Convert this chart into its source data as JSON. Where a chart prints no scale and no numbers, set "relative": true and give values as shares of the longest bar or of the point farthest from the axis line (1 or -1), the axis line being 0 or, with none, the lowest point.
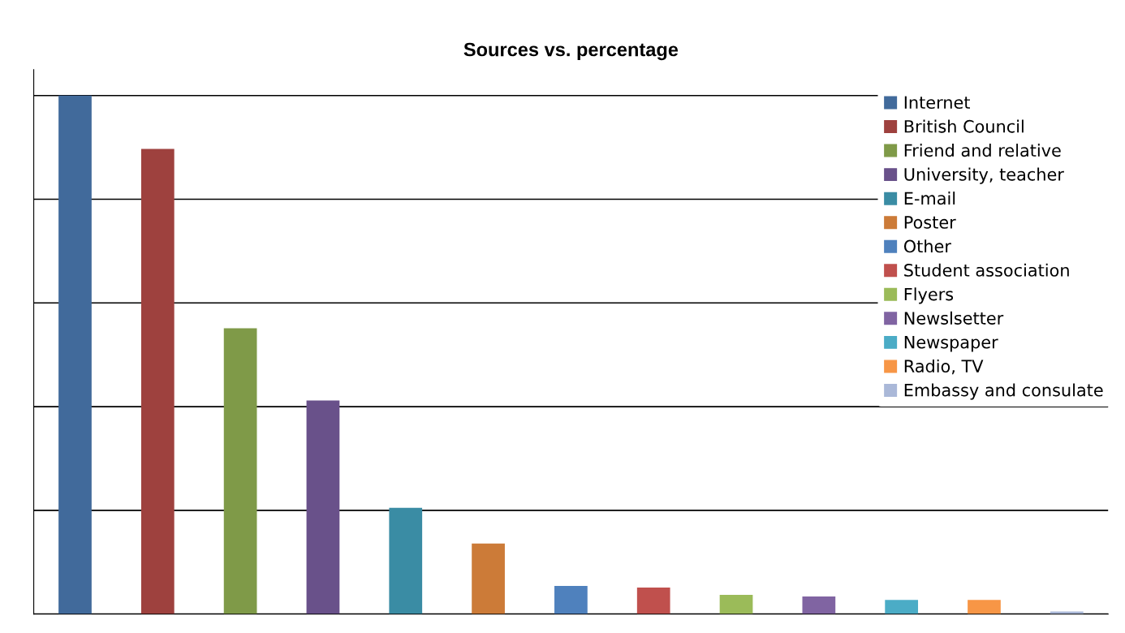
{
  "chart_data": {
    "type": "bar",
    "title": "Sources vs. percentage",
    "relative": true,
    "stacked": true,
    "grid": "y",
    "legend": "top right",
    "categories": [
      null,
      null,
      null,
      null,
      null,
      null,
      null,
      null,
      null,
      null,
      null,
      null,
      null
    ],
    "series": [
      {
        "name": "Internet",
        "color": "#416a9b",
        "values": [
          1,
          null,
          null,
          null,
          null,
          null,
          null,
          null,
          null,
          null,
          null,
          null,
          null
        ]
      },
      {
        "name": "British Council",
        "color": "#9e413e",
        "values": [
          null,
          0.897,
          null,
          null,
          null,
          null,
          null,
          null,
          null,
          null,
          null,
          null,
          null
        ]
      },
      {
        "name": "Friend and relative",
        "color": "#7f9a48",
        "values": [
          null,
          null,
          0.551,
          null,
          null,
          null,
          null,
          null,
          null,
          null,
          null,
          null,
          null
        ]
      },
      {
        "name": "University, teacher",
        "color": "#69518a",
        "values": [
          null,
          null,
          null,
          0.412,
          null,
          null,
          null,
          null,
          null,
          null,
          null,
          null,
          null
        ]
      },
      {
        "name": "E-mail",
        "color": "#3a8ca4",
        "values": [
          null,
          null,
          null,
          null,
          0.205,
          null,
          null,
          null,
          null,
          null,
          null,
          null,
          null
        ]
      },
      {
        "name": "Poster",
        "color": "#cc7b38",
        "values": [
          null,
          null,
          null,
          null,
          null,
          0.136,
          null,
          null,
          null,
          null,
          null,
          null,
          null
        ]
      },
      {
        "name": "Other",
        "color": "#4f81bd",
        "values": [
          null,
          null,
          null,
          null,
          null,
          null,
          0.054,
          null,
          null,
          null,
          null,
          null,
          null
        ]
      },
      {
        "name": "Student association",
        "color": "#c0504d",
        "values": [
          null,
          null,
          null,
          null,
          null,
          null,
          null,
          0.051,
          null,
          null,
          null,
          null,
          null
        ]
      },
      {
        "name": "Flyers",
        "color": "#9bbb59",
        "values": [
          null,
          null,
          null,
          null,
          null,
          null,
          null,
          null,
          0.037,
          null,
          null,
          null,
          null
        ]
      },
      {
        "name": "Newslsetter",
        "color": "#8064a2",
        "values": [
          null,
          null,
          null,
          null,
          null,
          null,
          null,
          null,
          null,
          0.034,
          null,
          null,
          null
        ]
      },
      {
        "name": "Newspaper",
        "color": "#4bacc6",
        "values": [
          null,
          null,
          null,
          null,
          null,
          null,
          null,
          null,
          null,
          null,
          0.027,
          null,
          null
        ]
      },
      {
        "name": "Radio, TV",
        "color": "#f79646",
        "values": [
          null,
          null,
          null,
          null,
          null,
          null,
          null,
          null,
          null,
          null,
          null,
          0.027,
          null
        ]
      },
      {
        "name": "Embassy and consulate",
        "color": "#aab8d8",
        "values": [
          null,
          null,
          null,
          null,
          null,
          null,
          null,
          null,
          null,
          null,
          null,
          null,
          0.005
        ]
      }
    ]
  }
}
